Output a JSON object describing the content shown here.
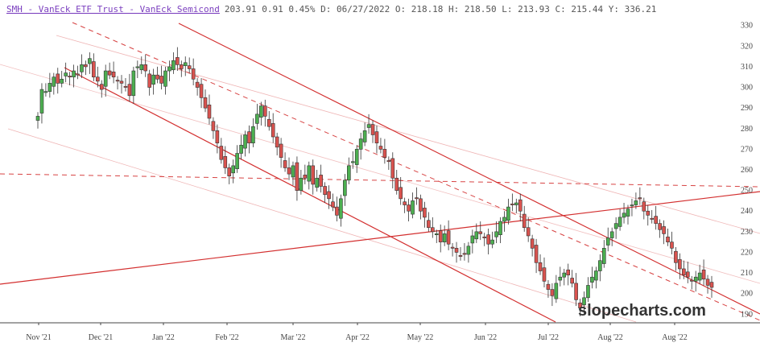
{
  "header": {
    "title": "SMH - VanEck ETF Trust - VanEck Semicond",
    "stats": "203.91 0.91 0.45% D: 06/27/2022 O: 218.18 H: 218.50 L: 213.93 C: 215.44 Y: 336.21"
  },
  "watermark": "slopecharts.com",
  "chart_data": {
    "type": "candlestick",
    "x_tick_labels": [
      "Nov '21",
      "Dec '21",
      "Jan '22",
      "Feb '22",
      "Mar '22",
      "Apr '22",
      "May '22",
      "Jun '22",
      "Jul '22",
      "Aug '22",
      "Aug '22"
    ],
    "y_tick_labels": [
      190,
      200,
      210,
      220,
      230,
      240,
      250,
      260,
      270,
      280,
      290,
      300,
      310,
      320,
      330
    ],
    "ylim": [
      187,
      333
    ],
    "colors": {
      "up": "#4caf50",
      "down": "#d9534f",
      "trendline": "#d32f2f"
    },
    "candles_close": [
      286,
      299,
      298,
      302,
      305,
      302,
      304,
      307,
      305,
      308,
      306,
      311,
      310,
      314,
      305,
      303,
      299,
      308,
      306,
      305,
      303,
      302,
      300,
      296,
      308,
      310,
      311,
      308,
      300,
      306,
      304,
      302,
      308,
      310,
      313,
      311,
      309,
      312,
      309,
      304,
      300,
      295,
      290,
      285,
      279,
      273,
      265,
      261,
      257,
      262,
      268,
      272,
      277,
      273,
      281,
      287,
      291,
      286,
      281,
      276,
      271,
      266,
      261,
      258,
      262,
      250,
      256,
      256,
      262,
      253,
      256,
      252,
      248,
      246,
      242,
      238,
      246,
      255,
      262,
      264,
      270,
      275,
      279,
      282,
      277,
      273,
      270,
      266,
      264,
      256,
      250,
      246,
      243,
      240,
      245,
      246,
      240,
      237,
      232,
      230,
      229,
      225,
      229,
      224,
      222,
      220,
      218,
      219,
      223,
      228,
      230,
      229,
      227,
      224,
      226,
      230,
      235,
      237,
      242,
      243,
      244,
      240,
      232,
      228,
      222,
      215,
      211,
      206,
      202,
      199,
      205,
      208,
      210,
      209,
      205,
      197,
      193,
      198,
      204,
      208,
      211,
      216,
      222,
      227,
      230,
      234,
      237,
      239,
      241,
      243,
      245,
      246,
      240,
      238,
      236,
      234,
      231,
      229,
      225,
      222,
      215,
      212,
      209,
      208,
      206,
      208,
      210,
      207,
      204,
      203
    ],
    "series_note": ""
  }
}
